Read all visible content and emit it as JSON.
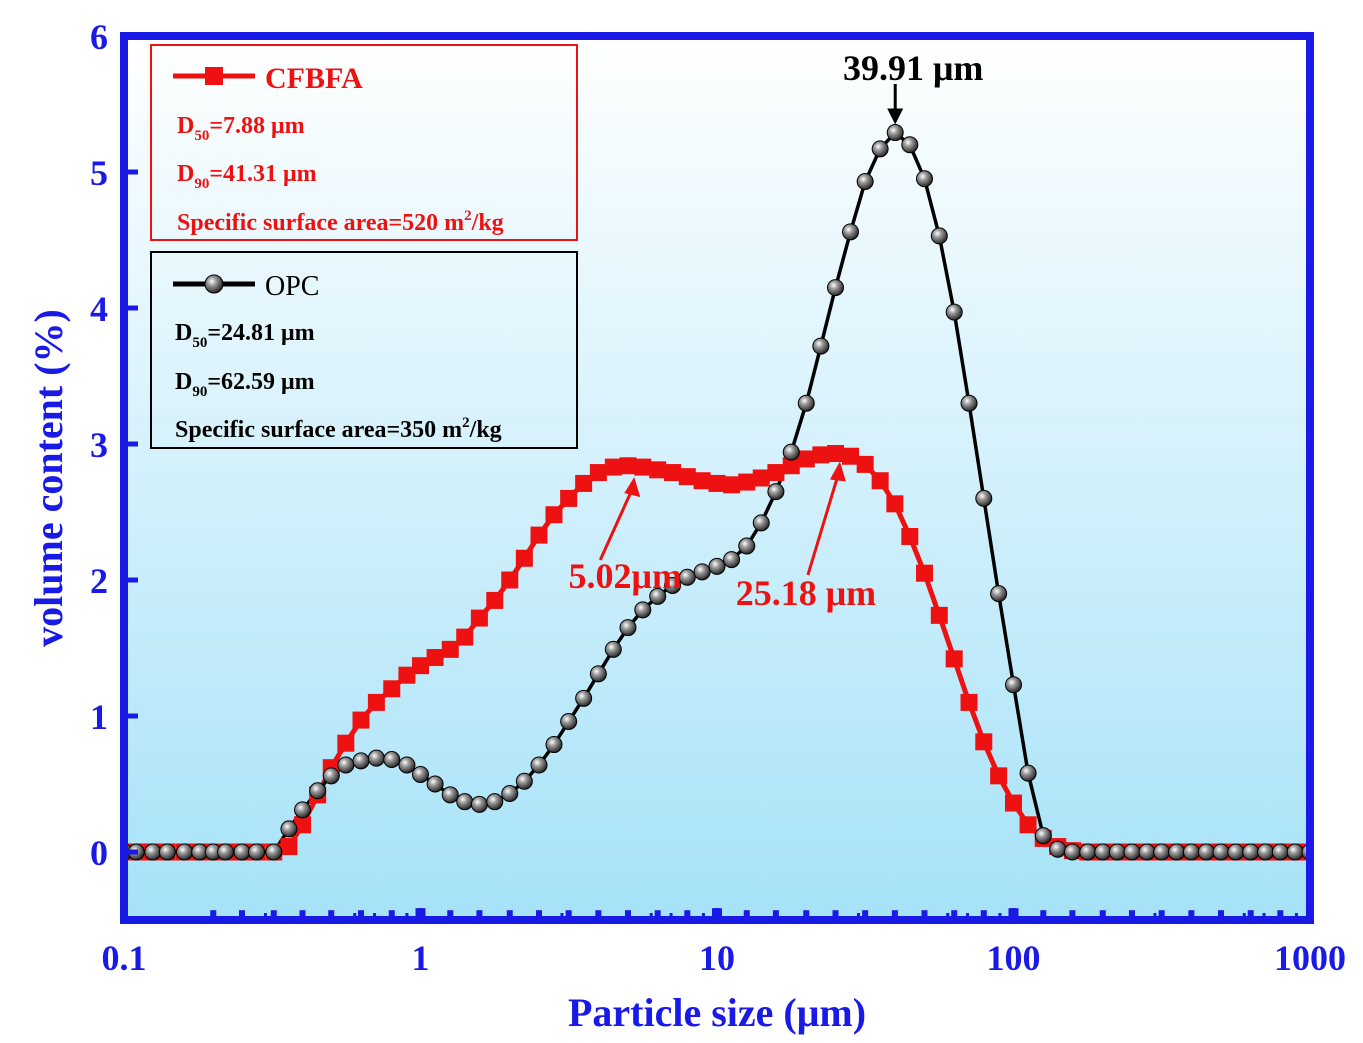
{
  "chart_data": {
    "type": "line",
    "x_scale": "log",
    "xlabel": "Particle size (μm)",
    "ylabel": "volume content (%)",
    "xlim": [
      0.1,
      1000
    ],
    "ylim": [
      -0.5,
      6
    ],
    "x_ticks": [
      0.1,
      1,
      10,
      100,
      1000
    ],
    "x_tick_labels": [
      "0.1",
      "1",
      "10",
      "100",
      "1000"
    ],
    "y_ticks": [
      0,
      1,
      2,
      3,
      4,
      5,
      6
    ],
    "y_tick_labels": [
      "0",
      "1",
      "2",
      "3",
      "4",
      "5",
      "6"
    ],
    "colors": {
      "axis": "#1a1ae6",
      "cfbfa": "#ee1111",
      "opc": "#000000",
      "bg_top": "#ffffff",
      "bg_bottom": "#a6e2f8"
    },
    "legend_placement": "top-left",
    "series": [
      {
        "name": "CFBFA",
        "marker": "square",
        "color": "#ee1111",
        "x": [
          0.1,
          0.11,
          0.125,
          0.14,
          0.16,
          0.18,
          0.2,
          0.22,
          0.25,
          0.28,
          0.32,
          0.36,
          0.4,
          0.45,
          0.5,
          0.56,
          0.63,
          0.71,
          0.8,
          0.9,
          1.0,
          1.12,
          1.26,
          1.41,
          1.58,
          1.78,
          2.0,
          2.24,
          2.51,
          2.82,
          3.16,
          3.55,
          3.98,
          4.47,
          5.01,
          5.62,
          6.31,
          7.08,
          7.94,
          8.91,
          10.0,
          11.2,
          12.6,
          14.1,
          15.8,
          17.8,
          20.0,
          22.4,
          25.1,
          28.2,
          31.6,
          35.5,
          39.8,
          44.7,
          50.1,
          56.2,
          63.1,
          70.8,
          79.4,
          89.1,
          100,
          112,
          126,
          141,
          158,
          178,
          200,
          224,
          251,
          282,
          316,
          355,
          398,
          447,
          501,
          562,
          631,
          708,
          794,
          891,
          1000
        ],
        "values": [
          0,
          0,
          0,
          0,
          0,
          0,
          0,
          0,
          0,
          0,
          0,
          0.04,
          0.2,
          0.42,
          0.62,
          0.8,
          0.97,
          1.1,
          1.2,
          1.3,
          1.37,
          1.43,
          1.49,
          1.58,
          1.72,
          1.85,
          2.0,
          2.16,
          2.33,
          2.48,
          2.6,
          2.71,
          2.79,
          2.83,
          2.84,
          2.83,
          2.81,
          2.79,
          2.76,
          2.73,
          2.71,
          2.7,
          2.72,
          2.75,
          2.79,
          2.84,
          2.89,
          2.92,
          2.93,
          2.91,
          2.85,
          2.73,
          2.56,
          2.32,
          2.05,
          1.74,
          1.42,
          1.1,
          0.81,
          0.56,
          0.36,
          0.2,
          0.1,
          0.04,
          0.01,
          0,
          0,
          0,
          0,
          0,
          0,
          0,
          0,
          0,
          0,
          0,
          0,
          0,
          0,
          0,
          0
        ]
      },
      {
        "name": "OPC",
        "marker": "circle",
        "color": "#000000",
        "x": [
          0.1,
          0.11,
          0.125,
          0.14,
          0.16,
          0.18,
          0.2,
          0.22,
          0.25,
          0.28,
          0.32,
          0.36,
          0.4,
          0.45,
          0.5,
          0.56,
          0.63,
          0.71,
          0.8,
          0.9,
          1.0,
          1.12,
          1.26,
          1.41,
          1.58,
          1.78,
          2.0,
          2.24,
          2.51,
          2.82,
          3.16,
          3.55,
          3.98,
          4.47,
          5.01,
          5.62,
          6.31,
          7.08,
          7.94,
          8.91,
          10.0,
          11.2,
          12.6,
          14.1,
          15.8,
          17.8,
          20.0,
          22.4,
          25.1,
          28.2,
          31.6,
          35.5,
          39.91,
          44.7,
          50.1,
          56.2,
          63.1,
          70.8,
          79.4,
          89.1,
          100,
          112,
          126,
          141,
          158,
          178,
          200,
          224,
          251,
          282,
          316,
          355,
          398,
          447,
          501,
          562,
          631,
          708,
          794,
          891,
          1000
        ],
        "values": [
          0,
          0,
          0,
          0,
          0,
          0,
          0,
          0,
          0,
          0,
          0,
          0.17,
          0.31,
          0.45,
          0.56,
          0.64,
          0.67,
          0.69,
          0.68,
          0.64,
          0.57,
          0.5,
          0.42,
          0.37,
          0.35,
          0.37,
          0.43,
          0.52,
          0.64,
          0.79,
          0.96,
          1.13,
          1.31,
          1.49,
          1.65,
          1.78,
          1.88,
          1.96,
          2.02,
          2.06,
          2.1,
          2.15,
          2.25,
          2.42,
          2.65,
          2.94,
          3.3,
          3.72,
          4.15,
          4.56,
          4.93,
          5.17,
          5.29,
          5.2,
          4.95,
          4.53,
          3.97,
          3.3,
          2.6,
          1.9,
          1.23,
          0.58,
          0.12,
          0.02,
          0,
          0,
          0,
          0,
          0,
          0,
          0,
          0,
          0,
          0,
          0,
          0,
          0,
          0,
          0,
          0,
          0
        ]
      }
    ],
    "baseline_series": {
      "name": "baseline markers",
      "color": "#1a1ae6",
      "y": -0.45,
      "x": [
        0.2,
        0.25,
        0.32,
        0.4,
        0.5,
        0.63,
        0.8,
        1.0,
        1.26,
        1.58,
        2.0,
        2.51,
        3.16,
        3.98,
        5.01,
        6.31,
        7.94,
        10,
        12.6,
        15.8,
        20,
        25.1,
        31.6,
        39.8,
        50.1,
        63.1,
        79.4,
        100,
        126,
        158,
        200,
        251,
        316,
        398,
        501,
        631,
        794,
        1000
      ]
    },
    "legend": [
      {
        "series": "CFBFA",
        "label": "CFBFA",
        "d50_sym": "D",
        "d50_sub": "50",
        "d50_val": "=7.88 μm",
        "d90_sym": "D",
        "d90_sub": "90",
        "d90_val": "=41.31 μm",
        "ssa_pre": "Specific surface area=520 m",
        "ssa_sup": "2",
        "ssa_post": "/kg"
      },
      {
        "series": "OPC",
        "label": "OPC",
        "d50_sym": "D",
        "d50_sub": "50",
        "d50_val": "=24.81 μm",
        "d90_sym": "D",
        "d90_sub": "90",
        "d90_val": "=62.59 μm",
        "ssa_pre": "Specific surface area=350 m",
        "ssa_sup": "2",
        "ssa_post": "/kg"
      }
    ],
    "annotations": [
      {
        "text": "39.91 μm",
        "color": "#000000",
        "x": 39.91,
        "y": 5.29
      },
      {
        "text": "5.02μm",
        "color": "#ee1111",
        "x": 5.02,
        "y": 2.83
      },
      {
        "text": "25.18 μm",
        "color": "#ee1111",
        "x": 25.18,
        "y": 2.93
      }
    ]
  }
}
